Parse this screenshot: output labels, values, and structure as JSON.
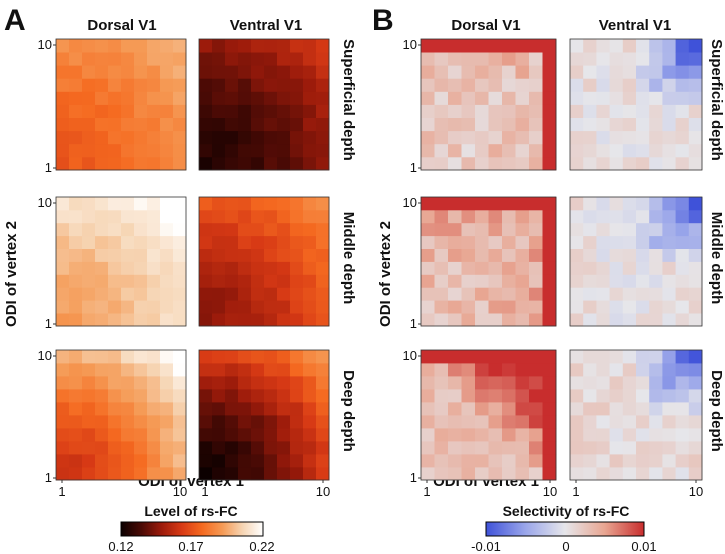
{
  "colors": {
    "heat": [
      "#0b0000",
      "#4a0a05",
      "#9c1b0b",
      "#d83a15",
      "#f56a20",
      "#f59a55",
      "#f6d5b4",
      "#ffffff"
    ],
    "diverging": [
      "#3f52d9",
      "#9aa6ea",
      "#e6e6ea",
      "#e8a692",
      "#c82d2d"
    ]
  },
  "chart_data": [
    {
      "id": "A",
      "type": "heatmap",
      "panel_label": "A",
      "columns": [
        "Dorsal V1",
        "Ventral V1"
      ],
      "rows": [
        "Superficial depth",
        "Middle depth",
        "Deep depth"
      ],
      "xlabel": "ODI of vertex 1",
      "ylabel": "ODI of vertex 2",
      "x_ticks": [
        "1",
        "10"
      ],
      "y_ticks": [
        "1",
        "10"
      ],
      "grid_size": 10,
      "colorbar": {
        "title": "Level of rs-FC",
        "min": 0.12,
        "max": 0.22,
        "ticks": [
          "0.12",
          "0.17",
          "0.22"
        ],
        "colormap": "heat"
      },
      "cells_note": "Each cell value (rs-FC level) estimated by model: base + gradient toward high ODI corner (row 1 = ODI 1 at bottom, col 1 = ODI 1 at left)",
      "maps": [
        {
          "row": "Superficial depth",
          "column": "Dorsal V1",
          "base": 0.172,
          "corner": 0.198,
          "pattern": "rise"
        },
        {
          "row": "Superficial depth",
          "column": "Ventral V1",
          "base": 0.125,
          "corner": 0.162,
          "pattern": "rise"
        },
        {
          "row": "Middle depth",
          "column": "Dorsal V1",
          "base": 0.192,
          "corner": 0.222,
          "pattern": "rise"
        },
        {
          "row": "Middle depth",
          "column": "Ventral V1",
          "base": 0.146,
          "corner": 0.188,
          "pattern": "rise"
        },
        {
          "row": "Deep depth",
          "column": "Dorsal V1",
          "base": 0.16,
          "corner": 0.222,
          "pattern": "rise"
        },
        {
          "row": "Deep depth",
          "column": "Ventral V1",
          "base": 0.122,
          "corner": 0.19,
          "pattern": "rise"
        }
      ]
    },
    {
      "id": "B",
      "type": "heatmap",
      "panel_label": "B",
      "columns": [
        "Dorsal V1",
        "Ventral V1"
      ],
      "rows": [
        "Superficial depth",
        "Middle depth",
        "Deep depth"
      ],
      "xlabel": "ODI of vertex 1",
      "ylabel": "ODI of vertex 2",
      "x_ticks": [
        "1",
        "10"
      ],
      "y_ticks": [
        "1",
        "10"
      ],
      "grid_size": 10,
      "colorbar": {
        "title": "Selectivity of rs-FC",
        "min": -0.01,
        "max": 0.01,
        "ticks": [
          "-0.01",
          "0",
          "0.01"
        ],
        "colormap": "diverging"
      },
      "maps": [
        {
          "row": "Superficial depth",
          "column": "Dorsal V1",
          "base": 0.003,
          "corner": 0.01,
          "pattern": "edge-high"
        },
        {
          "row": "Superficial depth",
          "column": "Ventral V1",
          "base": 0.0005,
          "corner": -0.01,
          "pattern": "corner-low"
        },
        {
          "row": "Middle depth",
          "column": "Dorsal V1",
          "base": 0.004,
          "corner": 0.01,
          "pattern": "edge-high"
        },
        {
          "row": "Middle depth",
          "column": "Ventral V1",
          "base": 0.0005,
          "corner": -0.01,
          "pattern": "corner-low"
        },
        {
          "row": "Deep depth",
          "column": "Dorsal V1",
          "base": 0.003,
          "corner": 0.01,
          "pattern": "corner-high"
        },
        {
          "row": "Deep depth",
          "column": "Ventral V1",
          "base": 0.001,
          "corner": -0.01,
          "pattern": "corner-low"
        }
      ]
    }
  ]
}
